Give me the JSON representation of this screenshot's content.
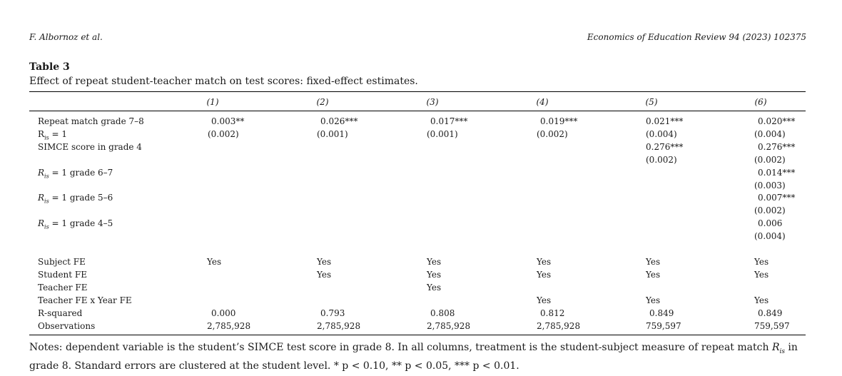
{
  "running_header": {
    "left": "F. Albornoz et al.",
    "right": "Economics of Education Review 94 (2023) 102375"
  },
  "table": {
    "title": "Table 3",
    "caption": "Effect of repeat student-teacher match on test scores: fixed-effect estimates.",
    "columns": [
      "(1)",
      "(2)",
      "(3)",
      "(4)",
      "(5)",
      "(6)"
    ],
    "row_labels": {
      "repeat_match": "Repeat match grade 7–8",
      "r_is_1": "R",
      "r_is_1_rest": " = 1",
      "simce": "SIMCE score in grade 4",
      "r_67_prefix": "R",
      "r_67_rest": " = 1 grade 6–7",
      "r_56_prefix": "R",
      "r_56_rest": " = 1 grade 5–6",
      "r_45_prefix": "R",
      "r_45_rest": " = 1 grade 4–5",
      "sub_is": "is",
      "subject_fe": "Subject FE",
      "student_fe": "Student FE",
      "teacher_fe": "Teacher FE",
      "teacher_year_fe": "Teacher FE x Year FE",
      "r_squared": "R-squared",
      "observations": "Observations"
    },
    "estimates": {
      "repeat_match": [
        "0.003**",
        "0.026***",
        "0.017***",
        "0.019***",
        "0.021***",
        "0.020***"
      ],
      "repeat_match_se": [
        "(0.002)",
        "(0.001)",
        "(0.001)",
        "(0.002)",
        "(0.004)",
        "(0.004)"
      ],
      "simce": [
        "0.276***",
        "0.276***"
      ],
      "simce_se": [
        "(0.002)",
        "(0.002)"
      ],
      "r_67": "0.014***",
      "r_67_se": "(0.003)",
      "r_56": "0.007***",
      "r_56_se": "(0.002)",
      "r_45": "0.006",
      "r_45_se": "(0.004)"
    },
    "fe": {
      "subject": [
        "Yes",
        "Yes",
        "Yes",
        "Yes",
        "Yes",
        "Yes"
      ],
      "student": [
        "Yes",
        "Yes",
        "Yes",
        "Yes",
        "Yes"
      ],
      "teacher": "Yes",
      "teacher_year": [
        "Yes",
        "Yes",
        "Yes"
      ]
    },
    "r_squared": [
      "0.000",
      "0.793",
      "0.808",
      "0.812",
      "0.849",
      "0.849"
    ],
    "observations": [
      "2,785,928",
      "2,785,928",
      "2,785,928",
      "2,785,928",
      "759,597",
      "759,597"
    ]
  },
  "notes": {
    "part1": "Notes: dependent variable is the student’s SIMCE test score in grade 8. In all columns, treatment is the student-subject measure of repeat match ",
    "r": "R",
    "sub": "is",
    "part2": " in grade 8. Standard errors are clustered at the student level. ",
    "sig": "* p < 0.10, ** p < 0.05, *** p < 0.01."
  }
}
